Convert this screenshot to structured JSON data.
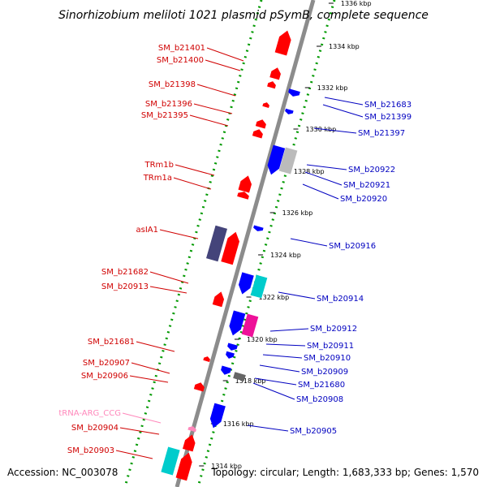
{
  "title": "Sinorhizobium meliloti 1021 plasmid pSymB, complete sequence",
  "footer": {
    "accession": "Accession: NC_003078",
    "topology": "Topology: circular; Length: 1,683,333 bp; Genes: 1,570"
  },
  "colors": {
    "backbone": "#8c8c8c",
    "dotted_guides": "#009900",
    "forward_gene": "#ff0000",
    "reverse_gene": "#0000ff",
    "label_left": "#d00000",
    "label_right": "#0000c0",
    "trna": "#ff88bb",
    "cyan_gene": "#00cccc",
    "magenta_gene": "#ee1199",
    "purple_gene": "#44447a",
    "grey_gene": "#bbbbbb"
  },
  "scale_ticks": [
    {
      "label": "1336 kbp"
    },
    {
      "label": "1334 kbp"
    },
    {
      "label": "1332 kbp"
    },
    {
      "label": "1330 kbp"
    },
    {
      "label": "1328 kbp"
    },
    {
      "label": "1326 kbp"
    },
    {
      "label": "1324 kbp"
    },
    {
      "label": "1322 kbp"
    },
    {
      "label": "1320 kbp"
    },
    {
      "label": "1318 kbp"
    },
    {
      "label": "1316 kbp"
    },
    {
      "label": "1314 kbp"
    }
  ],
  "left_labels": [
    {
      "text": "SM_b21401",
      "style": "forward"
    },
    {
      "text": "SM_b21400",
      "style": "forward"
    },
    {
      "text": "SM_b21398",
      "style": "forward"
    },
    {
      "text": "SM_b21396",
      "style": "forward"
    },
    {
      "text": "SM_b21395",
      "style": "forward"
    },
    {
      "text": "TRm1b",
      "style": "forward"
    },
    {
      "text": "TRm1a",
      "style": "forward"
    },
    {
      "text": "asIA1",
      "style": "forward"
    },
    {
      "text": "SM_b21682",
      "style": "forward"
    },
    {
      "text": "SM_b20913",
      "style": "forward"
    },
    {
      "text": "SM_b21681",
      "style": "forward"
    },
    {
      "text": "SM_b20907",
      "style": "forward"
    },
    {
      "text": "SM_b20906",
      "style": "forward"
    },
    {
      "text": "tRNA-ARG_CCG",
      "style": "trna"
    },
    {
      "text": "SM_b20904",
      "style": "forward"
    },
    {
      "text": "SM_b20903",
      "style": "forward"
    }
  ],
  "right_labels": [
    {
      "text": "SM_b21683"
    },
    {
      "text": "SM_b21399"
    },
    {
      "text": "SM_b21397"
    },
    {
      "text": "SM_b20922"
    },
    {
      "text": "SM_b20921"
    },
    {
      "text": "SM_b20920"
    },
    {
      "text": "SM_b20916"
    },
    {
      "text": "SM_b20914"
    },
    {
      "text": "SM_b20912"
    },
    {
      "text": "SM_b20911"
    },
    {
      "text": "SM_b20910"
    },
    {
      "text": "SM_b20909"
    },
    {
      "text": "SM_b21680"
    },
    {
      "text": "SM_b20908"
    },
    {
      "text": "SM_b20905"
    }
  ]
}
